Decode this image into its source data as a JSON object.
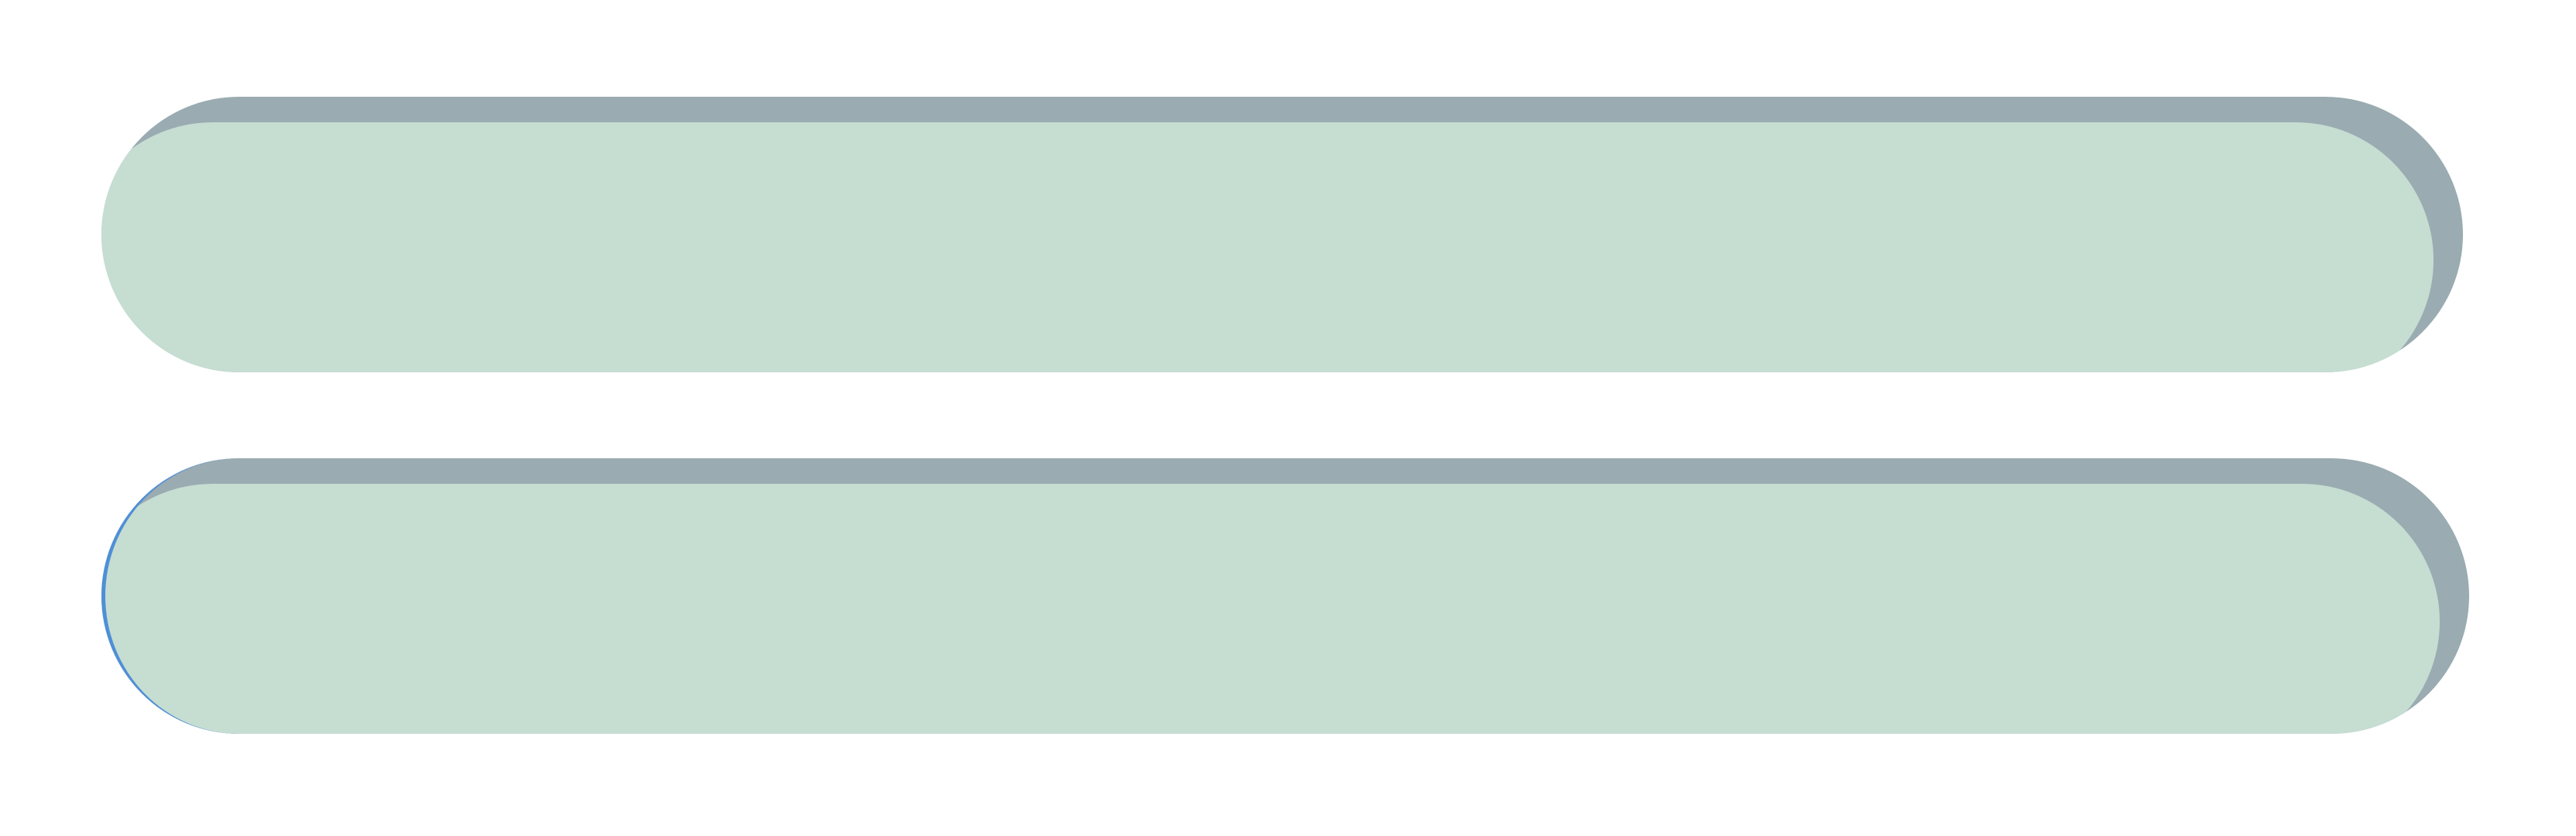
{
  "colors": {
    "background": "#ffffff",
    "pill_fill": "#c6ddd2",
    "pill_shadow": "#9aabb1",
    "focus_ring": "#4f8fd6"
  },
  "buttons": [
    {
      "label": "",
      "state": "normal"
    },
    {
      "label": "",
      "state": "focused"
    }
  ]
}
